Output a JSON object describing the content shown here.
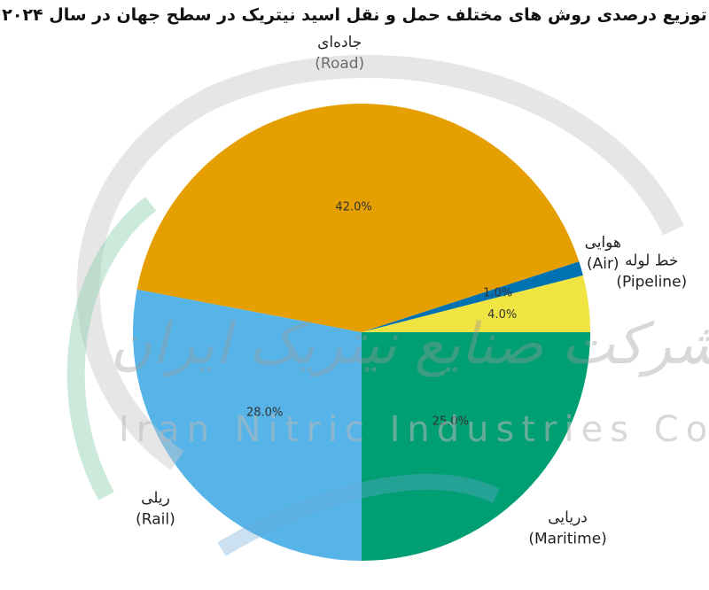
{
  "chart_data": {
    "type": "pie",
    "title": "توزیع درصدی روش های مختلف حمل و نقل اسید نیتریک در سطح جهان در سال ۲۰۲۴",
    "slices": [
      {
        "fa": "ریلی",
        "en": "(Rail)",
        "value": 28.0,
        "pct_label": "28.0%",
        "color": "#56b4e9"
      },
      {
        "fa": "جاده‌ای",
        "en": "(Road)",
        "value": 42.0,
        "pct_label": "42.0%",
        "color": "#e69f00"
      },
      {
        "fa": "هوایی",
        "en": "(Air)",
        "value": 1.0,
        "pct_label": "1.0%",
        "color": "#0072b2"
      },
      {
        "fa": "خط لوله",
        "en": "(Pipeline)",
        "value": 4.0,
        "pct_label": "4.0%",
        "color": "#f0e442"
      },
      {
        "fa": "دریایی",
        "en": "(Maritime)",
        "value": 25.0,
        "pct_label": "25.0%",
        "color": "#009e73"
      }
    ],
    "start": "bottom",
    "direction": "clockwise"
  },
  "watermark": {
    "latin": "Iran Nitric Industries Co",
    "farsi": "شرکت صنایع نیتریک ایران"
  }
}
